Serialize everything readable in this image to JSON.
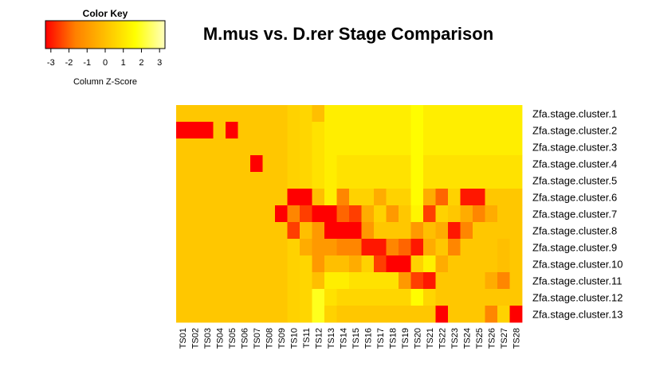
{
  "chart_data": {
    "type": "heatmap",
    "title": "M.mus vs. D.rer Stage Comparison",
    "color_key": {
      "title": "Color Key",
      "label": "Column Z-Score",
      "ticks": [
        -3,
        -2,
        -1,
        0,
        1,
        2,
        3
      ],
      "range": [
        -3.3,
        3.3
      ],
      "colors": [
        "#ff0000",
        "#ff8000",
        "#ffbf00",
        "#ffff00",
        "#ffffbf"
      ]
    },
    "columns": [
      "TS01",
      "TS02",
      "TS03",
      "TS04",
      "TS05",
      "TS06",
      "TS07",
      "TS08",
      "TS09",
      "TS10",
      "TS11",
      "TS12",
      "TS13",
      "TS14",
      "TS15",
      "TS16",
      "TS17",
      "TS18",
      "TS19",
      "TS20",
      "TS21",
      "TS22",
      "TS23",
      "TS24",
      "TS25",
      "TS26",
      "TS27",
      "TS28"
    ],
    "rows": [
      "Zfa.stage.cluster.1",
      "Zfa.stage.cluster.2",
      "Zfa.stage.cluster.3",
      "Zfa.stage.cluster.4",
      "Zfa.stage.cluster.5",
      "Zfa.stage.cluster.6",
      "Zfa.stage.cluster.7",
      "Zfa.stage.cluster.8",
      "Zfa.stage.cluster.9",
      "Zfa.stage.cluster.10",
      "Zfa.stage.cluster.11",
      "Zfa.stage.cluster.12",
      "Zfa.stage.cluster.13"
    ],
    "values": [
      [
        0.2,
        0.2,
        0.2,
        0.2,
        0.2,
        0.2,
        0.2,
        0.2,
        0.2,
        0.5,
        0.6,
        0,
        1.2,
        1.2,
        1.2,
        1.2,
        1.2,
        1.2,
        1.2,
        1.6,
        1.2,
        1.2,
        1.2,
        1.2,
        1.2,
        1.2,
        1.2,
        1.2
      ],
      [
        -3.3,
        -3.3,
        -3.3,
        0.2,
        -3.3,
        0.2,
        0.2,
        0.2,
        0.2,
        0.5,
        0.6,
        0.9,
        1.2,
        1.2,
        1.2,
        1.2,
        1.2,
        1.2,
        1.2,
        1.6,
        1.2,
        1.2,
        1.2,
        1.2,
        1.2,
        1.2,
        1.2,
        1.2
      ],
      [
        0.2,
        0.2,
        0.2,
        0.2,
        0.2,
        0.2,
        0.2,
        0.2,
        0.2,
        0.5,
        0.6,
        0.9,
        1.2,
        1.2,
        1.2,
        1.2,
        1.2,
        1.2,
        1.2,
        1.6,
        1.2,
        1.2,
        1.2,
        1.2,
        1.2,
        1.2,
        1.2,
        1.2
      ],
      [
        0.2,
        0.2,
        0.2,
        0.2,
        0.2,
        0.2,
        -3.3,
        0.2,
        0.2,
        0.5,
        0.6,
        0.9,
        1.2,
        0.9,
        0.9,
        0.9,
        0.9,
        0.9,
        0.9,
        1.6,
        0.9,
        0.9,
        0.9,
        0.9,
        0.9,
        0.9,
        0.9,
        0.9
      ],
      [
        0.2,
        0.2,
        0.2,
        0.2,
        0.2,
        0.2,
        0.2,
        0.2,
        0.2,
        0.5,
        0.6,
        0.9,
        1.2,
        0.9,
        0.9,
        0.9,
        0.9,
        0.9,
        0.9,
        1.6,
        0.9,
        0.9,
        0.9,
        0.9,
        0.9,
        0.9,
        0.9,
        0.9
      ],
      [
        0.2,
        0.2,
        0.2,
        0.2,
        0.2,
        0.2,
        0.2,
        0.2,
        0.2,
        -3.3,
        -3.3,
        0,
        1.2,
        -1.5,
        0.5,
        0.5,
        -0.5,
        0.5,
        0.5,
        1.6,
        -0.5,
        -2,
        0.5,
        -3,
        -3,
        0.2,
        0.2,
        0.2
      ],
      [
        0.2,
        0.2,
        0.2,
        0.2,
        0.2,
        0.2,
        0.2,
        0.2,
        -3.3,
        -1.5,
        -2.5,
        -3.3,
        -3.3,
        -2,
        -2.5,
        -0.5,
        0.5,
        -1,
        0.2,
        1.4,
        -2.5,
        0.5,
        0.2,
        -0.5,
        -1.5,
        -0.5,
        0.2,
        0.2
      ],
      [
        0.2,
        0.2,
        0.2,
        0.2,
        0.2,
        0.2,
        0.2,
        0.2,
        0.2,
        -2.5,
        0,
        -1,
        -3.3,
        -3.3,
        -3.3,
        -1,
        0.2,
        0.2,
        0.2,
        -1,
        0,
        -0.5,
        -3,
        -1.5,
        0.2,
        0.2,
        0.2,
        0.2
      ],
      [
        0.2,
        0.2,
        0.2,
        0.2,
        0.2,
        0.2,
        0.2,
        0.2,
        0.2,
        0.5,
        -0.5,
        -1,
        -1,
        -1.5,
        -1.5,
        -3,
        -3,
        -1.5,
        -2,
        -3,
        -0.5,
        0.2,
        -1.5,
        0.2,
        0.2,
        0.2,
        0,
        0.2
      ],
      [
        0.2,
        0.2,
        0.2,
        0.2,
        0.2,
        0.2,
        0.2,
        0.2,
        0.2,
        0.5,
        0.6,
        -1,
        0,
        0,
        -0.5,
        0.5,
        -2.5,
        -3.3,
        -3.3,
        0.5,
        1.3,
        -0.5,
        0.2,
        0.2,
        0.2,
        0.2,
        0,
        0.2
      ],
      [
        0.2,
        0.2,
        0.2,
        0.2,
        0.2,
        0.2,
        0.2,
        0.2,
        0.2,
        0.5,
        0.6,
        0,
        1.2,
        1.2,
        0.9,
        0.9,
        0.9,
        0.9,
        -1,
        -2.5,
        -3,
        0.2,
        0.2,
        0.2,
        0.2,
        -0.5,
        -1.5,
        0.2
      ],
      [
        0.2,
        0.2,
        0.2,
        0.2,
        0.2,
        0.2,
        0.2,
        0.2,
        0.2,
        0.5,
        0.6,
        1.9,
        0.9,
        0.6,
        0.6,
        0.6,
        0.6,
        0.6,
        0.6,
        1.6,
        0.6,
        0.2,
        0.2,
        0.2,
        0.2,
        0.2,
        0.2,
        0.2
      ],
      [
        0.2,
        0.2,
        0.2,
        0.2,
        0.2,
        0.2,
        0.2,
        0.2,
        0.2,
        0.5,
        0.6,
        1.9,
        0.5,
        0.2,
        0.2,
        0.2,
        0.2,
        0.2,
        0.2,
        0.2,
        0.2,
        -3.3,
        0.2,
        0.2,
        0.2,
        -1.5,
        0.5,
        -3.3
      ]
    ]
  }
}
